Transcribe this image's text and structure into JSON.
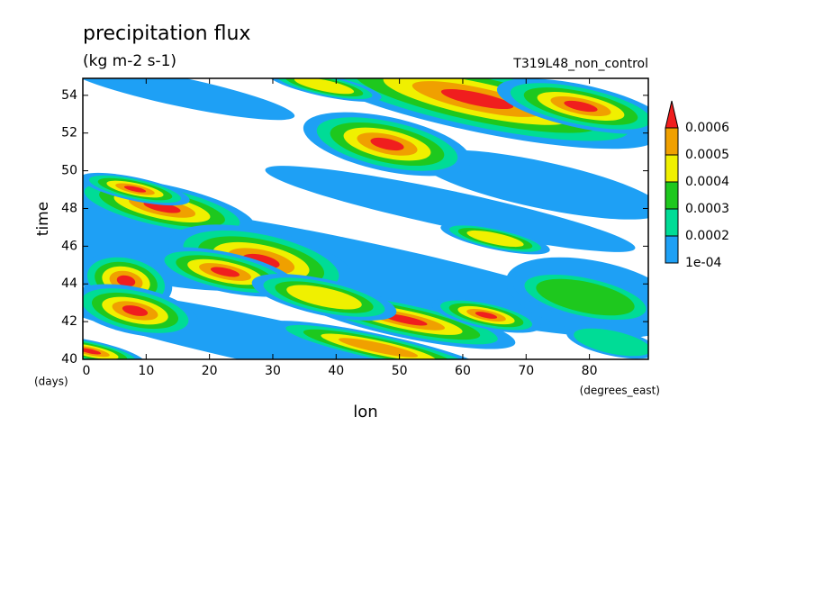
{
  "chart_data": {
    "type": "contour",
    "title": "precipitation flux",
    "subtitle": "(kg m-2 s-1)",
    "annotation": "T319L48_non_control",
    "x_label": "lon",
    "y_label": "time",
    "x_unit": "(degrees_east)",
    "y_unit": "(days)",
    "xlim": [
      0,
      89.3
    ],
    "xticks": [
      0,
      10,
      20,
      30,
      40,
      50,
      60,
      70,
      80
    ],
    "ylim": [
      40,
      54.9
    ],
    "yticks": [
      40,
      42,
      44,
      46,
      48,
      50,
      52,
      54
    ],
    "levels": [
      {
        "value": 0.0001,
        "label": "1e-04"
      },
      0.0002,
      0.0003,
      0.0004,
      0.0005,
      0.0006
    ],
    "colors": [
      "#1ea0f5",
      "#00dc96",
      "#1ec81e",
      "#f0f000",
      "#f0a000",
      "#f01e1e"
    ]
  }
}
